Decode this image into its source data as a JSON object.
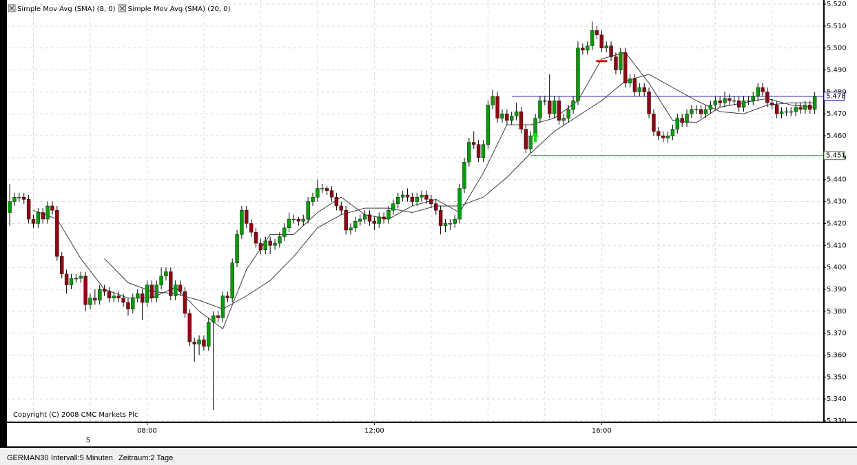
{
  "chart_data": {
    "type": "candlestick",
    "legend": [
      "Simple Mov Avg (SMA) (8, 0)",
      "Simple Mov Avg (SMA) (20, 0)"
    ],
    "copyright": "Copyright (C) 2008 CMC Markets Plc",
    "footer": {
      "symbol": "GERMAN30",
      "interval": "Intervall:5 Minuten",
      "period": "Zeitraum:2 Tage"
    },
    "up_color": "#0a9a0a",
    "down_color": "#8b0a14",
    "grid": true,
    "xlim": [
      -0.6,
      171.8
    ],
    "xticks": [
      {
        "value": 29,
        "label": "08:00"
      },
      {
        "value": 77,
        "label": "12:00"
      },
      {
        "value": 125,
        "label": "16:00"
      }
    ],
    "date_ticks": [
      {
        "value": 17,
        "label": "5"
      }
    ],
    "ylim": [
      5330,
      5520
    ],
    "yticks": [
      {
        "value": 5330,
        "label": "5.330"
      },
      {
        "value": 5340,
        "label": "5.340"
      },
      {
        "value": 5350,
        "label": "5.350"
      },
      {
        "value": 5360,
        "label": "5.360"
      },
      {
        "value": 5370,
        "label": "5.370"
      },
      {
        "value": 5380,
        "label": "5.380"
      },
      {
        "value": 5390,
        "label": "5.390"
      },
      {
        "value": 5400,
        "label": "5.400"
      },
      {
        "value": 5410,
        "label": "5.410"
      },
      {
        "value": 5420,
        "label": "5.420"
      },
      {
        "value": 5430,
        "label": "5.430"
      },
      {
        "value": 5440,
        "label": "5.440"
      },
      {
        "value": 5450,
        "label": "5.450"
      },
      {
        "value": 5460,
        "label": "5.460"
      },
      {
        "value": 5470,
        "label": "5.470"
      },
      {
        "value": 5480,
        "label": "5.480"
      },
      {
        "value": 5490,
        "label": "5.490"
      },
      {
        "value": 5500,
        "label": "5.500"
      },
      {
        "value": 5510,
        "label": "5.510"
      },
      {
        "value": 5520,
        "label": "5.520"
      }
    ],
    "open": [
      5425,
      5430,
      5432,
      5432,
      5431,
      5422,
      5420,
      5425,
      5422,
      5428,
      5426,
      5405,
      5397,
      5392,
      5395,
      5395,
      5396,
      5383,
      5386,
      5385,
      5390,
      5389,
      5386,
      5387,
      5386,
      5384,
      5381,
      5386,
      5388,
      5384,
      5392,
      5386,
      5392,
      5396,
      5398,
      5387,
      5392,
      5389,
      5379,
      5366,
      5365,
      5367,
      5364,
      5375,
      5378,
      5377,
      5387,
      5386,
      5402,
      5415,
      5426,
      5420,
      5416,
      5411,
      5408,
      5412,
      5410,
      5411,
      5414,
      5418,
      5422,
      5422,
      5421,
      5422,
      5430,
      5432,
      5436,
      5436,
      5435,
      5432,
      5428,
      5426,
      5417,
      5418,
      5421,
      5422,
      5424,
      5421,
      5420,
      5423,
      5422,
      5426,
      5429,
      5432,
      5433,
      5432,
      5430,
      5432,
      5433,
      5431,
      5429,
      5426,
      5419,
      5420,
      5420,
      5422,
      5436,
      5448,
      5457,
      5456,
      5450,
      5456,
      5474,
      5478,
      5468,
      5470,
      5467,
      5469,
      5471,
      5463,
      5454,
      5460,
      5468,
      5476,
      5476,
      5470,
      5476,
      5467,
      5468,
      5472,
      5476,
      5500,
      5499,
      5501,
      5508,
      5506,
      5500,
      5501,
      5496,
      5490,
      5498,
      5484,
      5486,
      5480,
      5482,
      5480,
      5470,
      5462,
      5460,
      5459,
      5460,
      5463,
      5468,
      5466,
      5470,
      5472,
      5472,
      5470,
      5472,
      5474,
      5476,
      5475,
      5477,
      5476,
      5476,
      5473,
      5476,
      5476,
      5478,
      5482,
      5480,
      5475,
      5474,
      5470,
      5471,
      5471,
      5471,
      5473,
      5472,
      5474,
      5472
    ],
    "high": [
      5438,
      5434,
      5434,
      5434,
      5433,
      5424,
      5427,
      5427,
      5430,
      5430,
      5428,
      5407,
      5399,
      5397,
      5397,
      5398,
      5398,
      5388,
      5390,
      5392,
      5392,
      5391,
      5389,
      5389,
      5388,
      5386,
      5388,
      5390,
      5390,
      5394,
      5394,
      5394,
      5400,
      5400,
      5400,
      5394,
      5394,
      5391,
      5381,
      5368,
      5369,
      5369,
      5377,
      5380,
      5380,
      5389,
      5389,
      5404,
      5417,
      5428,
      5428,
      5422,
      5418,
      5413,
      5414,
      5414,
      5413,
      5416,
      5420,
      5425,
      5424,
      5423,
      5424,
      5432,
      5434,
      5440,
      5438,
      5437,
      5437,
      5434,
      5430,
      5428,
      5420,
      5423,
      5424,
      5426,
      5426,
      5423,
      5425,
      5425,
      5428,
      5431,
      5434,
      5435,
      5436,
      5434,
      5434,
      5435,
      5435,
      5433,
      5431,
      5428,
      5422,
      5422,
      5424,
      5438,
      5450,
      5459,
      5462,
      5458,
      5458,
      5476,
      5481,
      5480,
      5472,
      5472,
      5471,
      5475,
      5473,
      5465,
      5462,
      5470,
      5478,
      5478,
      5488,
      5478,
      5478,
      5470,
      5474,
      5478,
      5503,
      5502,
      5503,
      5512,
      5510,
      5508,
      5503,
      5503,
      5498,
      5500,
      5500,
      5488,
      5488,
      5484,
      5484,
      5482,
      5472,
      5464,
      5462,
      5462,
      5465,
      5470,
      5470,
      5472,
      5474,
      5474,
      5474,
      5474,
      5476,
      5478,
      5478,
      5480,
      5479,
      5478,
      5478,
      5478,
      5478,
      5480,
      5484,
      5484,
      5482,
      5477,
      5476,
      5473,
      5473,
      5473,
      5475,
      5475,
      5476,
      5476,
      5480
    ],
    "low": [
      5419,
      5428,
      5430,
      5429,
      5420,
      5418,
      5418,
      5420,
      5420,
      5424,
      5403,
      5395,
      5388,
      5390,
      5393,
      5393,
      5380,
      5381,
      5383,
      5383,
      5387,
      5384,
      5384,
      5384,
      5382,
      5378,
      5379,
      5384,
      5376,
      5382,
      5384,
      5384,
      5390,
      5394,
      5385,
      5385,
      5387,
      5377,
      5364,
      5357,
      5360,
      5362,
      5362,
      5335,
      5375,
      5375,
      5384,
      5384,
      5400,
      5413,
      5418,
      5414,
      5409,
      5406,
      5406,
      5406,
      5408,
      5409,
      5412,
      5416,
      5420,
      5419,
      5419,
      5420,
      5428,
      5430,
      5434,
      5433,
      5430,
      5426,
      5424,
      5415,
      5415,
      5416,
      5419,
      5420,
      5419,
      5417,
      5418,
      5420,
      5420,
      5424,
      5427,
      5430,
      5430,
      5428,
      5428,
      5430,
      5429,
      5427,
      5424,
      5415,
      5416,
      5417,
      5418,
      5420,
      5434,
      5446,
      5454,
      5448,
      5448,
      5454,
      5472,
      5466,
      5466,
      5465,
      5465,
      5467,
      5461,
      5452,
      5452,
      5458,
      5466,
      5474,
      5468,
      5468,
      5465,
      5465,
      5466,
      5470,
      5474,
      5497,
      5497,
      5499,
      5504,
      5498,
      5498,
      5494,
      5488,
      5488,
      5482,
      5482,
      5478,
      5478,
      5478,
      5468,
      5460,
      5458,
      5457,
      5457,
      5458,
      5461,
      5464,
      5464,
      5468,
      5470,
      5468,
      5468,
      5470,
      5472,
      5473,
      5473,
      5474,
      5474,
      5471,
      5471,
      5474,
      5474,
      5476,
      5478,
      5473,
      5472,
      5468,
      5468,
      5469,
      5469,
      5469,
      5470,
      5470,
      5470,
      5470
    ],
    "close": [
      5430,
      5432,
      5432,
      5431,
      5422,
      5420,
      5425,
      5422,
      5428,
      5426,
      5405,
      5397,
      5392,
      5395,
      5395,
      5396,
      5383,
      5386,
      5385,
      5390,
      5389,
      5386,
      5387,
      5386,
      5384,
      5381,
      5386,
      5388,
      5384,
      5392,
      5386,
      5392,
      5396,
      5398,
      5387,
      5392,
      5389,
      5379,
      5366,
      5365,
      5367,
      5364,
      5375,
      5378,
      5377,
      5387,
      5386,
      5402,
      5415,
      5426,
      5420,
      5416,
      5411,
      5408,
      5412,
      5410,
      5411,
      5414,
      5418,
      5422,
      5422,
      5421,
      5422,
      5430,
      5432,
      5436,
      5436,
      5435,
      5432,
      5428,
      5426,
      5417,
      5418,
      5421,
      5422,
      5424,
      5421,
      5420,
      5423,
      5422,
      5426,
      5429,
      5432,
      5433,
      5432,
      5430,
      5432,
      5433,
      5431,
      5429,
      5426,
      5419,
      5420,
      5420,
      5422,
      5436,
      5448,
      5457,
      5456,
      5450,
      5456,
      5474,
      5478,
      5468,
      5470,
      5467,
      5469,
      5471,
      5463,
      5454,
      5460,
      5468,
      5476,
      5476,
      5470,
      5476,
      5467,
      5468,
      5472,
      5476,
      5500,
      5499,
      5501,
      5508,
      5506,
      5500,
      5501,
      5496,
      5490,
      5498,
      5484,
      5486,
      5480,
      5482,
      5480,
      5470,
      5462,
      5460,
      5459,
      5460,
      5463,
      5468,
      5466,
      5470,
      5472,
      5472,
      5470,
      5472,
      5474,
      5476,
      5475,
      5477,
      5476,
      5476,
      5473,
      5476,
      5476,
      5478,
      5482,
      5480,
      5475,
      5474,
      5470,
      5471,
      5471,
      5471,
      5473,
      5472,
      5474,
      5472,
      5478
    ],
    "series": [
      {
        "name": "Simple Mov Avg (SMA) (8, 0)",
        "color": "#3a3a3a",
        "x": [
          5,
          10,
          15,
          20,
          25,
          30,
          35,
          40,
          45,
          50,
          55,
          60,
          65,
          70,
          75,
          80,
          85,
          90,
          95,
          100,
          105,
          110,
          115,
          120,
          125,
          130,
          135,
          140,
          145,
          150,
          155,
          160,
          165,
          170
        ],
        "values": [
          5426,
          5422,
          5404,
          5390,
          5386,
          5386,
          5391,
          5380,
          5372,
          5399,
          5415,
          5415,
          5425,
          5432,
          5424,
          5422,
          5428,
          5431,
          5425,
          5443,
          5465,
          5465,
          5468,
          5476,
          5495,
          5498,
          5484,
          5467,
          5466,
          5473,
          5475,
          5477,
          5474,
          5473
        ]
      },
      {
        "name": "Simple Mov Avg (SMA) (20, 0)",
        "color": "#3a3a3a",
        "x": [
          20,
          25,
          30,
          35,
          40,
          45,
          50,
          55,
          60,
          65,
          70,
          75,
          80,
          85,
          90,
          95,
          100,
          105,
          110,
          115,
          120,
          125,
          130,
          135,
          140,
          145,
          150,
          155,
          160,
          165,
          170
        ],
        "values": [
          5404,
          5393,
          5389,
          5388,
          5385,
          5381,
          5387,
          5394,
          5405,
          5418,
          5424,
          5427,
          5427,
          5425,
          5428,
          5428,
          5432,
          5441,
          5452,
          5462,
          5469,
          5476,
          5485,
          5488,
          5482,
          5476,
          5471,
          5470,
          5474,
          5475,
          5475
        ]
      }
    ],
    "levels": [
      {
        "value": 5478,
        "label": "5.478",
        "start": 106,
        "color": "#1a1aa0"
      },
      {
        "value": 5451,
        "label": "5.451",
        "start": 110,
        "color": "#2a8a2a"
      }
    ],
    "signals": [
      {
        "kind": "buy",
        "x": 111,
        "value": 5459,
        "color": "#00e000"
      },
      {
        "kind": "sell",
        "x": 125,
        "value": 5494,
        "color": "#e00000"
      }
    ]
  }
}
